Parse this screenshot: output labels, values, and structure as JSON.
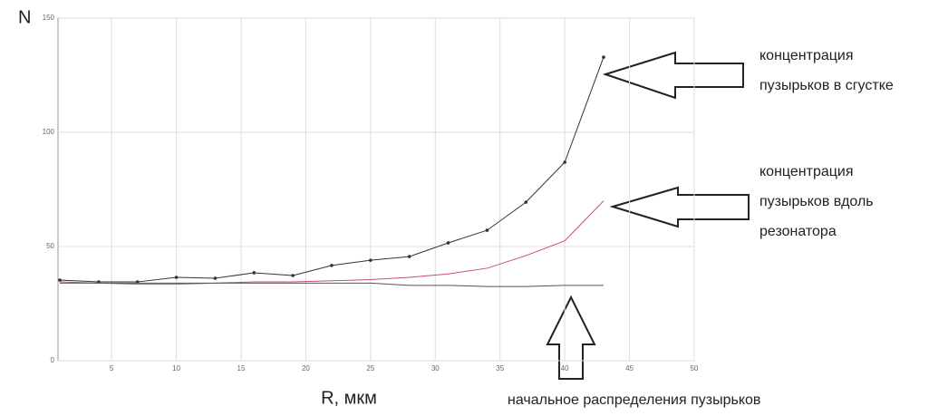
{
  "chart_data": {
    "type": "line",
    "y_label": "N",
    "x_label": "R, мкм",
    "x": [
      1,
      4,
      7,
      10,
      13,
      16,
      19,
      22,
      25,
      28,
      31,
      34,
      37,
      40,
      43
    ],
    "series": [
      {
        "color": "#333333",
        "marker": true,
        "values": [
          35.3,
          34.5,
          34.5,
          36.5,
          36.1,
          38.5,
          37.3,
          41.7,
          44,
          45.6,
          51.6,
          57.1,
          69.4,
          86.9,
          132.9
        ]
      },
      {
        "color": "#c8506a",
        "marker": false,
        "values": [
          34.5,
          34,
          33.5,
          33.5,
          34,
          34.5,
          34.5,
          35,
          35.5,
          36.5,
          38,
          40.5,
          46,
          52.5,
          70
        ]
      },
      {
        "color": "#555555",
        "marker": false,
        "values": [
          34,
          34,
          34,
          34,
          34,
          34,
          34,
          34,
          34,
          33,
          33,
          32.5,
          32.5,
          33,
          33
        ]
      }
    ],
    "xlim": [
      1,
      50
    ],
    "xticks": [
      5,
      10,
      15,
      20,
      25,
      30,
      35,
      40,
      45,
      50
    ],
    "ylim": [
      0,
      150
    ],
    "yticks": [
      0,
      50,
      100,
      150
    ],
    "grid": true,
    "annotations": [
      {
        "lines": [
          "концентрация",
          "пузырьков в сгустке"
        ]
      },
      {
        "lines": [
          "концентрация",
          "пузырьков вдоль",
          "резонатора"
        ]
      },
      {
        "lines": [
          "начальное распределения пузырьков"
        ]
      }
    ]
  }
}
